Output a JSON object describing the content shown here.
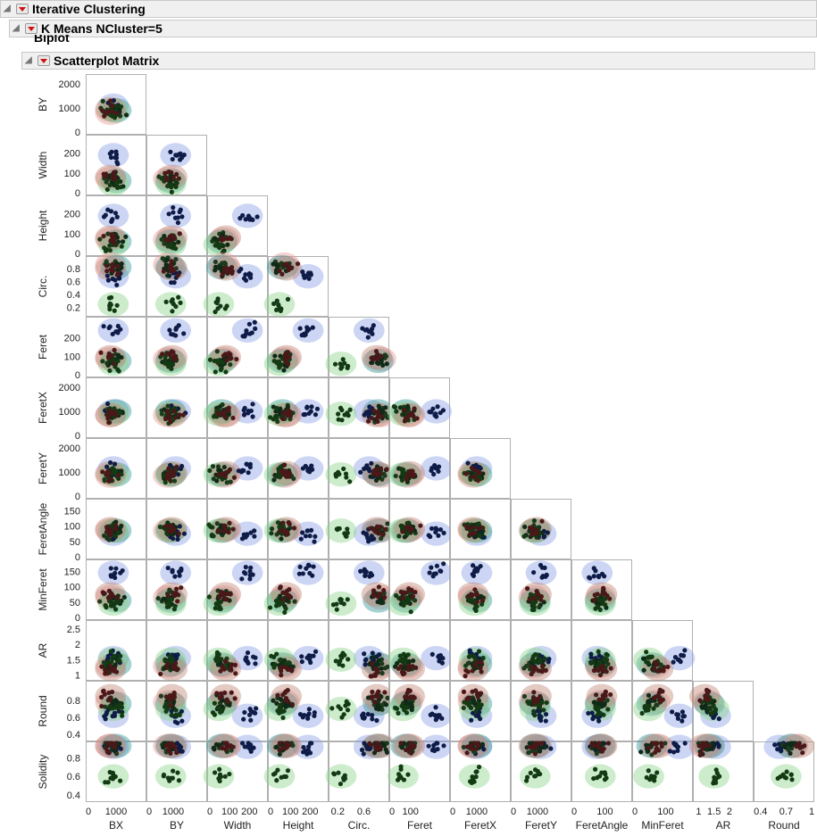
{
  "report": {
    "outline_title": "Iterative Clustering",
    "kmeans_title": "K Means NCluster=5",
    "biplot_title": "Biplot",
    "matrix_title": "Scatterplot Matrix"
  },
  "chart_data": {
    "type": "scatter",
    "title": "Scatterplot Matrix",
    "layout": "lower-triangular",
    "variables": [
      "BX",
      "BY",
      "Width",
      "Height",
      "Circ.",
      "Feret",
      "FeretX",
      "FeretY",
      "FeretAngle",
      "MinFeret",
      "AR",
      "Round",
      "Solidity"
    ],
    "row_variables": [
      "BY",
      "Width",
      "Height",
      "Circ.",
      "Feret",
      "FeretX",
      "FeretY",
      "FeretAngle",
      "MinFeret",
      "AR",
      "Round",
      "Solidity"
    ],
    "column_variables": [
      "BX",
      "BY",
      "Width",
      "Height",
      "Circ.",
      "Feret",
      "FeretX",
      "FeretY",
      "FeretAngle",
      "MinFeret",
      "AR",
      "Round"
    ],
    "ranges": {
      "BX": [
        0,
        2000
      ],
      "BY": [
        0,
        2300
      ],
      "Width": [
        0,
        280
      ],
      "Height": [
        0,
        280
      ],
      "Circ.": [
        0.1,
        0.95
      ],
      "Feret": [
        0,
        300
      ],
      "FeretX": [
        0,
        2300
      ],
      "FeretY": [
        0,
        2300
      ],
      "FeretAngle": [
        0,
        180
      ],
      "MinFeret": [
        0,
        180
      ],
      "AR": [
        0.9,
        2.7
      ],
      "Round": [
        0.35,
        1.0
      ],
      "Solidity": [
        0.35,
        0.95
      ]
    },
    "y_ticks": {
      "BY": [
        "2000",
        "1000",
        "0"
      ],
      "Width": [
        "200",
        "100",
        "0"
      ],
      "Height": [
        "200",
        "100",
        "0"
      ],
      "Circ.": [
        "0.8",
        "0.6",
        "0.4",
        "0.2"
      ],
      "Feret": [
        "200",
        "100",
        "0"
      ],
      "FeretX": [
        "2000",
        "1000",
        "0"
      ],
      "FeretY": [
        "2000",
        "1000",
        "0"
      ],
      "FeretAngle": [
        "150",
        "100",
        "50",
        "0"
      ],
      "MinFeret": [
        "150",
        "100",
        "50",
        "0"
      ],
      "AR": [
        "2.5",
        "2",
        "1.5",
        "1"
      ],
      "Round": [
        "0.8",
        "0.6",
        "0.4"
      ],
      "Solidity": [
        "0.8",
        "0.6",
        "0.4"
      ]
    },
    "x_ticks": {
      "BX": [
        "0",
        "1000"
      ],
      "BY": [
        "0",
        "1000"
      ],
      "Width": [
        "0",
        "100",
        "200"
      ],
      "Height": [
        "0",
        "100",
        "200"
      ],
      "Circ.": [
        "0.2",
        "0.6"
      ],
      "Feret": [
        "0",
        "100"
      ],
      "FeretX": [
        "0",
        "1000"
      ],
      "FeretY": [
        "0",
        "1000"
      ],
      "FeretAngle": [
        "0",
        "100"
      ],
      "MinFeret": [
        "0",
        "100"
      ],
      "AR": [
        "1",
        "1.5",
        "2"
      ],
      "Round": [
        "0.4",
        "0.7",
        "1"
      ]
    },
    "clusters": [
      {
        "id": 1,
        "color": "#0f1c48",
        "fill": "#8fa4e6",
        "center": {
          "BX": 900,
          "BY": 1100,
          "Width": 190,
          "Height": 190,
          "Circ.": 0.68,
          "Feret": 240,
          "FeretX": 1000,
          "FeretY": 1150,
          "FeretAngle": 75,
          "MinFeret": 145,
          "AR": 1.55,
          "Round": 0.62,
          "Solidity": 0.92
        }
      },
      {
        "id": 2,
        "color": "#1c3a1c",
        "fill": "#ea9a9a",
        "center": {
          "BX": 800,
          "BY": 800,
          "Width": 70,
          "Height": 70,
          "Circ.": 0.86,
          "Feret": 85,
          "FeretX": 850,
          "FeretY": 850,
          "FeretAngle": 85,
          "MinFeret": 65,
          "AR": 1.3,
          "Round": 0.78,
          "Solidity": 0.93
        }
      },
      {
        "id": 3,
        "color": "#0f2a18",
        "fill": "#3a9a9a",
        "center": {
          "BX": 1000,
          "BY": 900,
          "Width": 60,
          "Height": 60,
          "Circ.": 0.82,
          "Feret": 75,
          "FeretX": 1000,
          "FeretY": 900,
          "FeretAngle": 85,
          "MinFeret": 55,
          "AR": 1.35,
          "Round": 0.76,
          "Solidity": 0.93
        }
      },
      {
        "id": 4,
        "color": "#133a13",
        "fill": "#8ed48e",
        "center": {
          "BX": 900,
          "BY": 900,
          "Width": 45,
          "Height": 45,
          "Circ.": 0.25,
          "Feret": 60,
          "FeretX": 900,
          "FeretY": 900,
          "FeretAngle": 85,
          "MinFeret": 45,
          "AR": 1.5,
          "Round": 0.7,
          "Solidity": 0.6
        }
      },
      {
        "id": 5,
        "color": "#4a1818",
        "fill": "#c28a7a",
        "center": {
          "BX": 800,
          "BY": 950,
          "Width": 80,
          "Height": 80,
          "Circ.": 0.8,
          "Feret": 95,
          "FeretX": 850,
          "FeretY": 950,
          "FeretAngle": 90,
          "MinFeret": 75,
          "AR": 1.2,
          "Round": 0.85,
          "Solidity": 0.93
        }
      }
    ]
  }
}
